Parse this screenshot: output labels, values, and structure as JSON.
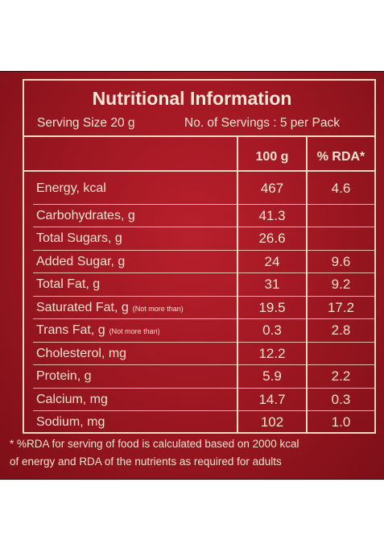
{
  "title": "Nutritional Information",
  "serving_size": "Serving Size 20 g",
  "servings": "No. of Servings : 5 per Pack",
  "table": {
    "col_100g": "100 g",
    "col_rda": "% RDA*",
    "rows": [
      {
        "label": "Energy, kcal",
        "note": "",
        "v100": "467",
        "rda": "4.6"
      },
      {
        "label": "Carbohydrates, g",
        "note": "",
        "v100": "41.3",
        "rda": ""
      },
      {
        "label": "Total Sugars, g",
        "note": "",
        "v100": "26.6",
        "rda": ""
      },
      {
        "label": "Added Sugar, g",
        "note": "",
        "v100": "24",
        "rda": "9.6"
      },
      {
        "label": "Total Fat, g",
        "note": "",
        "v100": "31",
        "rda": "9.2"
      },
      {
        "label": "Saturated Fat, g",
        "note": "(Not more than)",
        "v100": "19.5",
        "rda": "17.2"
      },
      {
        "label": "Trans Fat, g",
        "note": "(Not more than)",
        "v100": "0.3",
        "rda": "2.8"
      },
      {
        "label": "Cholesterol, mg",
        "note": "",
        "v100": "12.2",
        "rda": ""
      },
      {
        "label": "Protein, g",
        "note": "",
        "v100": "5.9",
        "rda": "2.2"
      },
      {
        "label": "Calcium, mg",
        "note": "",
        "v100": "14.7",
        "rda": "0.3"
      },
      {
        "label": "Sodium, mg",
        "note": "",
        "v100": "102",
        "rda": "1.0"
      }
    ]
  },
  "footnote_line1": "* %RDA  for serving of food is calculated based on 2000 kcal",
  "footnote_line2": "of energy and RDA of the nutrients as required for adults",
  "colors": {
    "panel": "#a01822",
    "text": "#f6e3d2",
    "lines": "#f3d9c4"
  }
}
